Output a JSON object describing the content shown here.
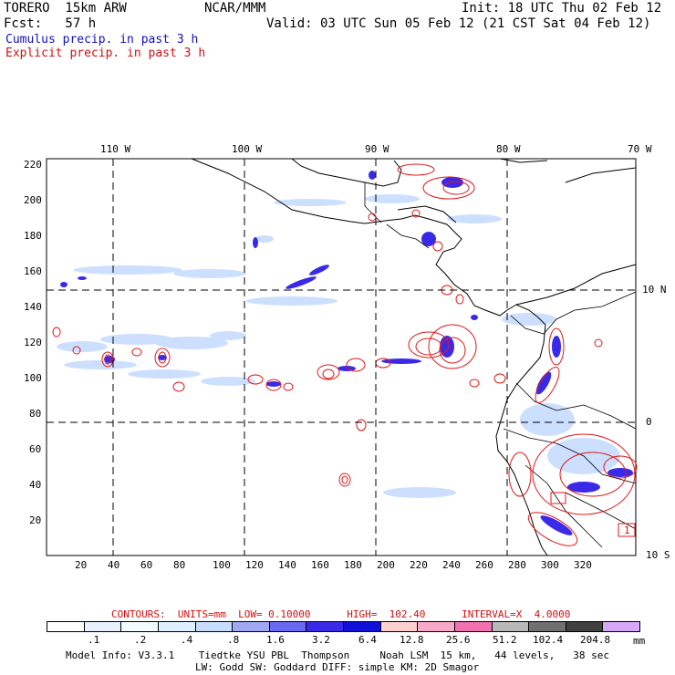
{
  "header": {
    "model": "TORERO  15km ARW",
    "org": "NCAR/MMM",
    "init": "Init: 18 UTC Thu 02 Feb 12",
    "fcst": "Fcst:   57 h",
    "valid": "Valid: 03 UTC Sun 05 Feb 12 (21 CST Sat 04 Feb 12)",
    "cumulus": "Cumulus precip. in past 3 h",
    "explicit": "Explicit precip. in past 3 h"
  },
  "map": {
    "lon_labels": [
      "110 W",
      "100 W",
      "90 W",
      "80 W",
      "70 W"
    ],
    "lat_labels": [
      "10 N",
      "0",
      "10 S"
    ],
    "y_ticks": [
      "220",
      "200",
      "180",
      "160",
      "140",
      "120",
      "100",
      "80",
      "60",
      "40",
      "20"
    ],
    "x_ticks": [
      "20",
      "40",
      "60",
      "80",
      "100",
      "120",
      "140",
      "160",
      "180",
      "200",
      "220",
      "240",
      "260",
      "280",
      "300",
      "320"
    ],
    "box_label": "1"
  },
  "legend": {
    "contours_label": "CONTOURS:  UNITS=mm  LOW= 0.10000      HIGH=  102.40      INTERVAL=X  4.0000",
    "levels": [
      ".1",
      ".2",
      ".4",
      ".8",
      "1.6",
      "3.2",
      "6.4",
      "12.8",
      "25.6",
      "51.2",
      "102.4",
      "204.8"
    ],
    "unit": "mm",
    "colors": [
      "#ffffff",
      "#e8f2ff",
      "#f0fcff",
      "#def0ff",
      "#c8dcff",
      "#a0a8f4",
      "#6a6af0",
      "#3a2ae8",
      "#1010d8",
      "#ffd0d0",
      "#f8a8c8",
      "#f070b0",
      "#b8b8b8",
      "#707070",
      "#404040",
      "#d8a8f8"
    ]
  },
  "footer": {
    "line1": "Model Info: V3.3.1    Tiedtke YSU PBL  Thompson     Noah LSM  15 km,   44 levels,   38 sec",
    "line2": "LW: Godd SW: Goddard DIFF: simple KM: 2D Smagor"
  }
}
